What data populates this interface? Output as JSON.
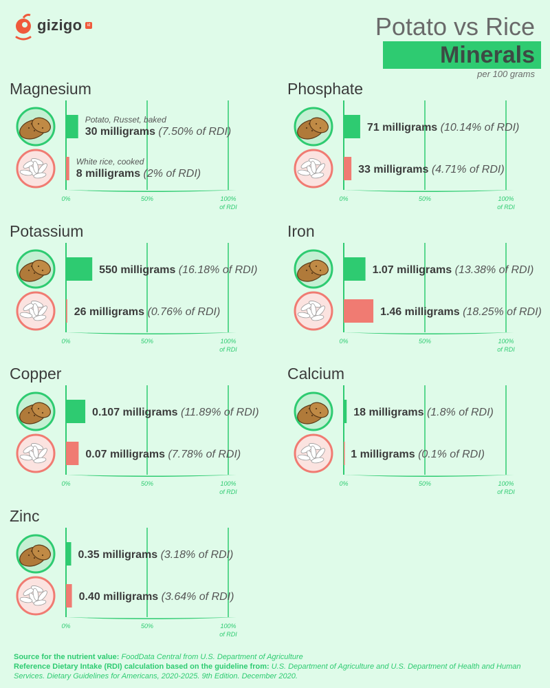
{
  "brand": {
    "name": "gizigo",
    "tag": "id"
  },
  "header": {
    "title": "Potato vs Rice",
    "subtitle": "Minerals",
    "unit": "per 100 grams"
  },
  "axis": {
    "ticks": [
      "0%",
      "50%",
      "100%"
    ],
    "tick_suffix": "of RDI"
  },
  "legend": {
    "food_a": "Potato, Russet, baked",
    "food_b": "White rice, cooked"
  },
  "colors": {
    "food_a": "#2ecb71",
    "food_b": "#f07b72",
    "grid": "#2ecb71",
    "background": "#dffbe9"
  },
  "icons": {
    "food_a": "potato-icon",
    "food_b": "rice-icon"
  },
  "footer": {
    "source_label": "Source for the nutrient value:",
    "source_text": "FoodData Central from U.S. Department of Agriculture",
    "rdi_label": "Reference Dietary Intake (RDI) calculation based on the guideline from:",
    "rdi_text": "U.S. Department of Agriculture and U.S. Department of Health and Human Services. Dietary Guidelines for Americans, 2020-2025. 9th Edition. December 2020."
  },
  "chart_data": [
    {
      "type": "bar",
      "title": "Magnesium",
      "categories": [
        "Potato, Russet, baked",
        "White rice, cooked"
      ],
      "values": [
        7.5,
        2
      ],
      "value_labels": [
        "30 milligrams",
        "8 milligrams"
      ],
      "percent_labels": [
        "(7.50% of RDI)",
        "(2% of RDI)"
      ],
      "xlim": [
        0,
        100
      ]
    },
    {
      "type": "bar",
      "title": "Phosphate",
      "categories": [
        "Potato, Russet, baked",
        "White rice, cooked"
      ],
      "values": [
        10.14,
        4.71
      ],
      "value_labels": [
        "71 milligrams",
        "33 milligrams"
      ],
      "percent_labels": [
        "(10.14% of RDI)",
        "(4.71% of RDI)"
      ],
      "xlim": [
        0,
        100
      ]
    },
    {
      "type": "bar",
      "title": "Potassium",
      "categories": [
        "Potato, Russet, baked",
        "White rice, cooked"
      ],
      "values": [
        16.18,
        0.76
      ],
      "value_labels": [
        "550 milligrams",
        "26 milligrams"
      ],
      "percent_labels": [
        "(16.18% of RDI)",
        "(0.76% of RDI)"
      ],
      "xlim": [
        0,
        100
      ]
    },
    {
      "type": "bar",
      "title": "Iron",
      "categories": [
        "Potato, Russet, baked",
        "White rice, cooked"
      ],
      "values": [
        13.38,
        18.25
      ],
      "value_labels": [
        "1.07 milligrams",
        "1.46 milligrams"
      ],
      "percent_labels": [
        "(13.38% of RDI)",
        "(18.25% of RDI)"
      ],
      "xlim": [
        0,
        100
      ]
    },
    {
      "type": "bar",
      "title": "Copper",
      "categories": [
        "Potato, Russet, baked",
        "White rice, cooked"
      ],
      "values": [
        11.89,
        7.78
      ],
      "value_labels": [
        "0.107 milligrams",
        "0.07 milligrams"
      ],
      "percent_labels": [
        "(11.89% of RDI)",
        "(7.78% of RDI)"
      ],
      "xlim": [
        0,
        100
      ]
    },
    {
      "type": "bar",
      "title": "Calcium",
      "categories": [
        "Potato, Russet, baked",
        "White rice, cooked"
      ],
      "values": [
        1.8,
        0.1
      ],
      "value_labels": [
        "18 milligrams",
        "1 milligrams"
      ],
      "percent_labels": [
        "(1.8% of RDI)",
        "(0.1% of RDI)"
      ],
      "xlim": [
        0,
        100
      ]
    },
    {
      "type": "bar",
      "title": "Zinc",
      "categories": [
        "Potato, Russet, baked",
        "White rice, cooked"
      ],
      "values": [
        3.18,
        3.64
      ],
      "value_labels": [
        "0.35 milligrams",
        "0.40 milligrams"
      ],
      "percent_labels": [
        "(3.18% of RDI)",
        "(3.64% of RDI)"
      ],
      "xlim": [
        0,
        100
      ]
    }
  ]
}
